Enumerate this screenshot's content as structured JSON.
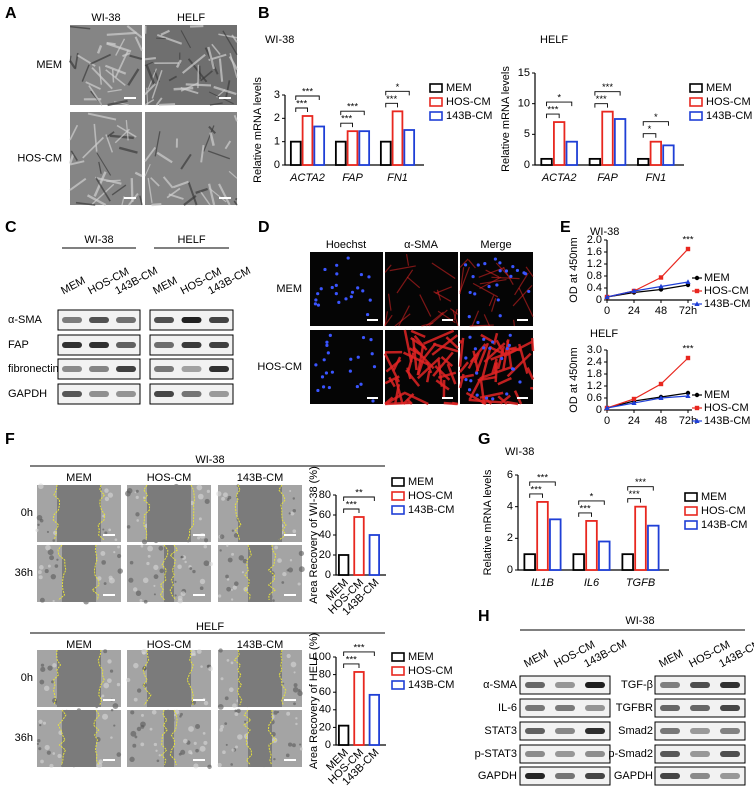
{
  "panels": {
    "A": {
      "letter": "A",
      "columns": [
        "WI-38",
        "HELF"
      ],
      "rows": [
        "MEM",
        "HOS-CM"
      ]
    },
    "B": {
      "letter": "B"
    },
    "C": {
      "letter": "C",
      "groups": [
        "WI-38",
        "HELF"
      ],
      "lanes": [
        "MEM",
        "HOS-CM",
        "143B-CM"
      ],
      "rows": [
        "α-SMA",
        "FAP",
        "fibronectin",
        "GAPDH"
      ]
    },
    "D": {
      "letter": "D",
      "columns": [
        "Hoechst",
        "α-SMA",
        "Merge"
      ],
      "rows": [
        "MEM",
        "HOS-CM"
      ]
    },
    "E": {
      "letter": "E"
    },
    "F": {
      "letter": "F",
      "groups": [
        {
          "title": "WI-38",
          "columns": [
            "MEM",
            "HOS-CM",
            "143B-CM"
          ],
          "rows": [
            "0h",
            "36h"
          ]
        },
        {
          "title": "HELF",
          "columns": [
            "MEM",
            "HOS-CM",
            "143B-CM"
          ],
          "rows": [
            "0h",
            "36h"
          ]
        }
      ]
    },
    "G": {
      "letter": "G"
    },
    "H": {
      "letter": "H",
      "title": "WI-38",
      "lanes": [
        "MEM",
        "HOS-CM",
        "143B-CM"
      ],
      "left_rows": [
        "α-SMA",
        "IL-6",
        "STAT3",
        "p-STAT3",
        "GAPDH"
      ],
      "right_rows": [
        "TGF-β",
        "TGFBR",
        "Smad2",
        "p-Smad2",
        "GAPDH"
      ]
    }
  },
  "chart_data": [
    {
      "type": "bar",
      "title": "WI-38",
      "y_label": "Relative mRNA levels",
      "categories": [
        "ACTA2",
        "FAP",
        "FN1"
      ],
      "series": [
        {
          "name": "MEM",
          "color": "#000000",
          "values": [
            1.0,
            1.0,
            1.0
          ]
        },
        {
          "name": "HOS-CM",
          "color": "#e8271f",
          "values": [
            2.1,
            1.45,
            2.3
          ]
        },
        {
          "name": "143B-CM",
          "color": "#1f3fd6",
          "values": [
            1.65,
            1.45,
            1.5
          ]
        }
      ],
      "ylim": [
        0,
        3
      ],
      "yticks": [
        0,
        1,
        2,
        3
      ],
      "significance": [
        [
          "***",
          "***"
        ],
        [
          "***",
          "***"
        ],
        [
          "***",
          "*"
        ]
      ]
    },
    {
      "type": "bar",
      "title": "HELF",
      "y_label": "Relative mRNA levels",
      "categories": [
        "ACTA2",
        "FAP",
        "FN1"
      ],
      "series": [
        {
          "name": "MEM",
          "color": "#000000",
          "values": [
            1.0,
            1.0,
            1.0
          ]
        },
        {
          "name": "HOS-CM",
          "color": "#e8271f",
          "values": [
            7.0,
            8.7,
            3.8
          ]
        },
        {
          "name": "143B-CM",
          "color": "#1f3fd6",
          "values": [
            3.8,
            7.5,
            3.2
          ]
        }
      ],
      "ylim": [
        0,
        15
      ],
      "yticks": [
        0,
        5,
        10,
        15
      ],
      "significance": [
        [
          "***",
          "*"
        ],
        [
          "***",
          "***"
        ],
        [
          "*",
          "*"
        ]
      ]
    },
    {
      "type": "line",
      "title": "WI-38",
      "y_label": "OD at 450nm",
      "x": [
        0,
        24,
        48,
        72
      ],
      "xlim": [
        0,
        72
      ],
      "xticks": [
        0,
        24,
        48,
        {
          "value": 72,
          "label": "72h"
        }
      ],
      "ylim": [
        0,
        2
      ],
      "yticks": [
        0,
        0.4,
        0.8,
        1.2,
        1.6,
        {
          "value": 2,
          "label": "2.0"
        }
      ],
      "series": [
        {
          "name": "MEM",
          "color": "#000000",
          "values": [
            0.1,
            0.25,
            0.35,
            0.5
          ]
        },
        {
          "name": "HOS-CM",
          "color": "#e8271f",
          "values": [
            0.1,
            0.3,
            0.75,
            1.7
          ]
        },
        {
          "name": "143B-CM",
          "color": "#1f3fd6",
          "values": [
            0.1,
            0.3,
            0.45,
            0.6
          ]
        }
      ],
      "annotations": [
        "***"
      ]
    },
    {
      "type": "line",
      "title": "HELF",
      "y_label": "OD at 450nm",
      "x": [
        0,
        24,
        48,
        72
      ],
      "xlim": [
        0,
        72
      ],
      "xticks": [
        0,
        24,
        48,
        {
          "value": 72,
          "label": "72h"
        }
      ],
      "ylim": [
        0,
        3
      ],
      "yticks": [
        0,
        0.6,
        1.2,
        1.8,
        2.4,
        {
          "value": 3,
          "label": "3.0"
        }
      ],
      "series": [
        {
          "name": "MEM",
          "color": "#000000",
          "values": [
            0.1,
            0.45,
            0.65,
            0.85
          ]
        },
        {
          "name": "HOS-CM",
          "color": "#e8271f",
          "values": [
            0.1,
            0.55,
            1.3,
            2.6
          ]
        },
        {
          "name": "143B-CM",
          "color": "#1f3fd6",
          "values": [
            0.1,
            0.35,
            0.6,
            0.7
          ]
        }
      ],
      "annotations": [
        "***"
      ]
    },
    {
      "type": "singlebar",
      "y_label": "Area Recovery of WI-38 (%)",
      "categories": [
        "MEM",
        "HOS-CM",
        "143B-CM"
      ],
      "values": [
        20,
        58,
        40
      ],
      "colors": [
        "#000000",
        "#e8271f",
        "#1f3fd6"
      ],
      "ylim": [
        0,
        80
      ],
      "yticks": [
        0,
        20,
        40,
        60,
        80
      ],
      "significance": [
        "***",
        "**"
      ]
    },
    {
      "type": "singlebar",
      "y_label": "Area Recovery of HELF (%)",
      "categories": [
        "MEM",
        "HOS-CM",
        "143B-CM"
      ],
      "values": [
        22,
        83,
        57
      ],
      "colors": [
        "#000000",
        "#e8271f",
        "#1f3fd6"
      ],
      "ylim": [
        0,
        100
      ],
      "yticks": [
        0,
        20,
        40,
        60,
        80,
        100
      ],
      "significance": [
        "***",
        "***"
      ]
    },
    {
      "type": "bar",
      "title": "WI-38",
      "y_label": "Relative mRNA levels",
      "categories": [
        "IL1B",
        "IL6",
        "TGFB"
      ],
      "series": [
        {
          "name": "MEM",
          "color": "#000000",
          "values": [
            1.0,
            1.0,
            1.0
          ]
        },
        {
          "name": "HOS-CM",
          "color": "#e8271f",
          "values": [
            4.3,
            3.1,
            4.0
          ]
        },
        {
          "name": "143B-CM",
          "color": "#1f3fd6",
          "values": [
            3.2,
            1.8,
            2.8
          ]
        }
      ],
      "ylim": [
        0,
        6
      ],
      "yticks": [
        0,
        2,
        4,
        6
      ],
      "significance": [
        [
          "***",
          "***"
        ],
        [
          "***",
          "*"
        ],
        [
          "***",
          "***"
        ]
      ]
    }
  ]
}
